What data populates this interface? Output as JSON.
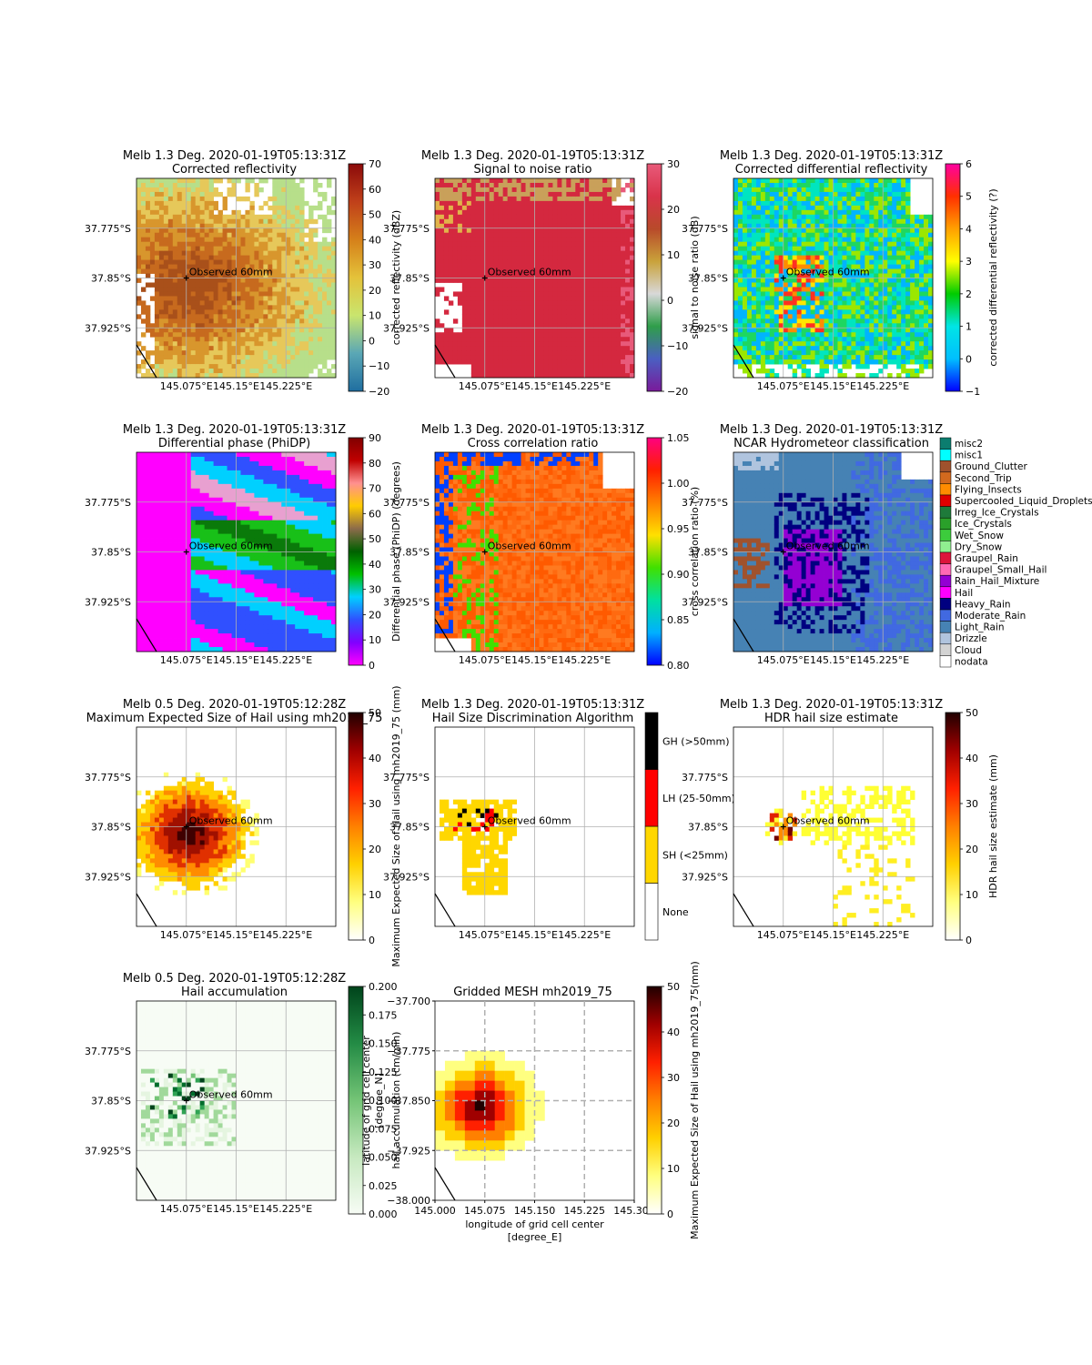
{
  "figure": {
    "background": "#ffffff"
  },
  "marker_label": "Observed 60mm",
  "x_ticks": [
    "145.075°E",
    "145.15°E",
    "145.225°E"
  ],
  "y_ticks": [
    "37.775°S",
    "37.85°S",
    "37.925°S"
  ],
  "chart_data": [
    {
      "type": "heatmap",
      "title": "Melb 1.3 Deg. 2020-01-19T05:13:31Z",
      "subtitle": "Corrected reflectivity",
      "colorbar": {
        "label": "corrected reflectivity (dBZ)",
        "min": -20,
        "max": 70,
        "ticks": [
          -20,
          -10,
          0,
          10,
          20,
          30,
          40,
          50,
          60,
          70
        ],
        "cmap": [
          "#1f6ea0",
          "#5aa7b5",
          "#c9e56e",
          "#e4c23a",
          "#d5801a",
          "#c0401a",
          "#8b0a0a"
        ]
      },
      "field": {
        "type": "storm",
        "core": [
          145.08,
          -37.86
        ],
        "radius": 0.12,
        "palette": [
          "#b7df8a",
          "#e6c85a",
          "#d8962d",
          "#c76a1e",
          "#a9501a"
        ]
      },
      "marker": [
        145.075,
        -37.85
      ]
    },
    {
      "type": "heatmap",
      "title": "Melb 1.3 Deg. 2020-01-19T05:13:31Z",
      "subtitle": "Signal to noise ratio",
      "colorbar": {
        "label": "signal to noise ratio (dB)",
        "min": -20,
        "max": 30,
        "ticks": [
          -20,
          -10,
          0,
          10,
          20,
          30
        ],
        "cmap": [
          "#7a1a9a",
          "#4a5fc2",
          "#2f9e4a",
          "#d8d8d8",
          "#c9a23a",
          "#b84a2a",
          "#d9334a",
          "#e85a7a"
        ]
      },
      "field": {
        "type": "solid",
        "palette": [
          "#d4283f"
        ]
      },
      "marker": [
        145.075,
        -37.85
      ]
    },
    {
      "type": "heatmap",
      "title": "Melb 1.3 Deg. 2020-01-19T05:13:31Z",
      "subtitle": "Corrected differential reflectivity",
      "colorbar": {
        "label": "corrected differential reflectivity (?)",
        "min": -1,
        "max": 6,
        "ticks": [
          -1,
          0,
          1,
          2,
          3,
          4,
          5,
          6
        ],
        "cmap": [
          "#0000ff",
          "#00bfff",
          "#00e5e5",
          "#00cc00",
          "#ffff00",
          "#ffa000",
          "#ff3000",
          "#ff00a0"
        ]
      },
      "field": {
        "type": "noisy",
        "palette": [
          "#00b4ff",
          "#1ed760",
          "#00e5c0",
          "#9be700",
          "#ffe600",
          "#ff8c00",
          "#ff3020"
        ]
      },
      "marker": [
        145.075,
        -37.85
      ]
    },
    {
      "type": "heatmap",
      "title": "Melb 1.3 Deg. 2020-01-19T05:13:31Z",
      "subtitle": "Differential phase (PhiDP)",
      "colorbar": {
        "label": "Differential phase (PhiDP) (degrees)",
        "min": 0,
        "max": 90,
        "ticks": [
          0,
          10,
          20,
          30,
          40,
          50,
          60,
          70,
          80,
          90
        ],
        "cmap": [
          "#ff00ff",
          "#8000ff",
          "#3050ff",
          "#00d0ff",
          "#00c000",
          "#006000",
          "#8c6b4a",
          "#ffcc00",
          "#ff9090",
          "#c00000",
          "#800000"
        ]
      },
      "field": {
        "type": "phase",
        "palette": [
          "#ff00ff",
          "#3050ff",
          "#00d0ff",
          "#18c018",
          "#0a7a0a",
          "#c0c0c0",
          "#e8a0d0"
        ]
      },
      "marker": [
        145.075,
        -37.85
      ]
    },
    {
      "type": "heatmap",
      "title": "Melb 1.3 Deg. 2020-01-19T05:13:31Z",
      "subtitle": "Cross correlation ratio",
      "colorbar": {
        "label": "cross correlation ratio (%)",
        "min": 0.8,
        "max": 1.05,
        "ticks": [
          0.8,
          0.85,
          0.9,
          0.95,
          1.0,
          1.05
        ],
        "cmap": [
          "#0000ff",
          "#00b0ff",
          "#00e0a0",
          "#40e000",
          "#ffe000",
          "#ff8000",
          "#ff2000",
          "#ff0080"
        ]
      },
      "field": {
        "type": "rhohv",
        "palette": [
          "#ff6a10",
          "#ff7a20",
          "#ff5a00",
          "#40e000",
          "#0040ff"
        ]
      },
      "marker": [
        145.075,
        -37.85
      ]
    },
    {
      "type": "heatmap",
      "title": "Melb 1.3 Deg. 2020-01-19T05:13:31Z",
      "subtitle": "NCAR Hydrometeor classification",
      "categories": [
        {
          "name": "misc2",
          "color": "#0b7d6f"
        },
        {
          "name": "misc1",
          "color": "#00ffff"
        },
        {
          "name": "Ground_Clutter",
          "color": "#a0522d"
        },
        {
          "name": "Second_Trip",
          "color": "#d2691e"
        },
        {
          "name": "Flying_Insects",
          "color": "#ff8c00"
        },
        {
          "name": "Supercooled_Liquid_Droplets",
          "color": "#e00000"
        },
        {
          "name": "Irreg_Ice_Crystals",
          "color": "#1e7a3a"
        },
        {
          "name": "Ice_Crystals",
          "color": "#2aa02a"
        },
        {
          "name": "Wet_Snow",
          "color": "#3ccc3c"
        },
        {
          "name": "Dry_Snow",
          "color": "#90ee90"
        },
        {
          "name": "Graupel_Rain",
          "color": "#dc143c"
        },
        {
          "name": "Graupel_Small_Hail",
          "color": "#ff69b4"
        },
        {
          "name": "Rain_Hail_Mixture",
          "color": "#9400d3"
        },
        {
          "name": "Hail",
          "color": "#ff00ff"
        },
        {
          "name": "Heavy_Rain",
          "color": "#000080"
        },
        {
          "name": "Moderate_Rain",
          "color": "#4169e1"
        },
        {
          "name": "Light_Rain",
          "color": "#4682b4"
        },
        {
          "name": "Drizzle",
          "color": "#b0c4de"
        },
        {
          "name": "Cloud",
          "color": "#d3d3d3"
        },
        {
          "name": "nodata",
          "color": "#ffffff"
        }
      ],
      "field": {
        "type": "hid",
        "palette": [
          "#4682b4",
          "#4169e1",
          "#000080",
          "#9400d3",
          "#a0522d",
          "#b0c4de"
        ]
      },
      "marker": [
        145.075,
        -37.85
      ]
    },
    {
      "type": "heatmap",
      "title": "Melb 0.5 Deg. 2020-01-19T05:12:28Z",
      "subtitle": "Maximum Expected Size of Hail using mh2019_75",
      "colorbar": {
        "label": "Maximum Expected Size of Hail using mh2019_75 (mm)",
        "min": 0,
        "max": 50,
        "ticks": [
          0,
          10,
          20,
          30,
          40,
          50
        ],
        "cmap": [
          "#ffffff",
          "#ffff80",
          "#ffd000",
          "#ff8000",
          "#ff2000",
          "#a00000",
          "#200000"
        ]
      },
      "field": {
        "type": "hail",
        "core": [
          145.08,
          -37.86
        ],
        "radius": 0.07,
        "palette": [
          "#ffff70",
          "#ffd000",
          "#ff8c00",
          "#e03000",
          "#a01000",
          "#400000"
        ]
      },
      "marker": [
        145.075,
        -37.85
      ]
    },
    {
      "type": "heatmap",
      "title": "Melb 1.3 Deg. 2020-01-19T05:13:31Z",
      "subtitle": "Hail Size Discrimination Algorithm",
      "categories": [
        {
          "name": "None",
          "color": "#ffffff"
        },
        {
          "name": "SH (<25mm)",
          "color": "#ffd700"
        },
        {
          "name": "LH (25-50mm)",
          "color": "#ff0000"
        },
        {
          "name": "GH (>50mm)",
          "color": "#000000"
        }
      ],
      "field": {
        "type": "hsda",
        "palette": [
          "#ffd700",
          "#ff0000",
          "#000000"
        ]
      },
      "marker": [
        145.075,
        -37.85
      ]
    },
    {
      "type": "heatmap",
      "title": "Melb 1.3 Deg. 2020-01-19T05:13:31Z",
      "subtitle": "HDR hail size estimate",
      "colorbar": {
        "label": "HDR hail size estimate (mm)",
        "min": 0,
        "max": 50,
        "ticks": [
          0,
          10,
          20,
          30,
          40,
          50
        ],
        "cmap": [
          "#ffffff",
          "#ffff80",
          "#ffd000",
          "#ff8000",
          "#ff2000",
          "#a00000",
          "#200000"
        ]
      },
      "field": {
        "type": "hdr",
        "palette": [
          "#ffff33",
          "#ffee22",
          "#ff8c00",
          "#e02000",
          "#700000"
        ]
      },
      "marker": [
        145.075,
        -37.85
      ]
    },
    {
      "type": "heatmap",
      "title": "Melb 0.5 Deg. 2020-01-19T05:12:28Z",
      "subtitle": "Hail accumulation",
      "colorbar": {
        "label": "hail accumulation (cm/min)",
        "min": 0,
        "max": 0.2,
        "ticks": [
          0.0,
          0.025,
          0.05,
          0.075,
          0.1,
          0.125,
          0.15,
          0.175,
          0.2
        ],
        "cmap": [
          "#f7fcf5",
          "#c7e9c0",
          "#74c476",
          "#238b45",
          "#00441b"
        ]
      },
      "field": {
        "type": "accum",
        "palette": [
          "#e5f5e0",
          "#a1d99b",
          "#74c476",
          "#31a354",
          "#006d2c",
          "#00441b"
        ]
      },
      "marker": [
        145.075,
        -37.85
      ]
    },
    {
      "type": "heatmap",
      "title": "",
      "subtitle": "Gridded MESH mh2019_75",
      "xlabel": "longitude of grid cell center\n[degree_E]",
      "ylabel": "latitude of grid cell center\n[degree_N]",
      "xlim": [
        145.0,
        145.3
      ],
      "ylim": [
        -38.0,
        -37.7
      ],
      "x_ticks": [
        "145.000",
        "145.075",
        "145.150",
        "145.225",
        "145.300"
      ],
      "y_ticks": [
        "−37.700",
        "−37.775",
        "−37.850",
        "−37.925",
        "−38.000"
      ],
      "colorbar": {
        "label": "Maximum Expected Size of Hail using mh2019_75(mm)",
        "min": 0,
        "max": 50,
        "ticks": [
          0,
          10,
          20,
          30,
          40,
          50
        ],
        "cmap": [
          "#ffffff",
          "#ffff80",
          "#ffd000",
          "#ff8000",
          "#ff2000",
          "#a00000",
          "#200000"
        ]
      },
      "field": {
        "type": "grid",
        "core": [
          145.07,
          -37.86
        ],
        "radius": 0.085,
        "max": 50
      }
    }
  ]
}
